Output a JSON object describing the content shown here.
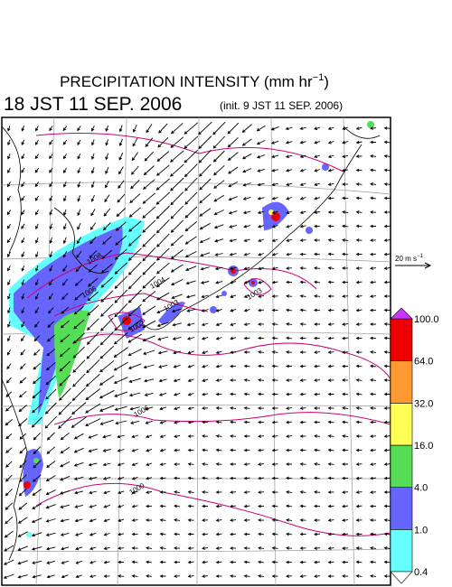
{
  "header": {
    "title": "PRECIPITATION INTENSITY (mm hr",
    "title_exponent": "−1",
    "title_close": ")",
    "valid_time": "18 JST 11 SEP. 2006",
    "init_time": "(init. 9 JST 11 SEP. 2006)"
  },
  "wind_scale": {
    "label": "20 m s",
    "exponent": "−1"
  },
  "colorbar": {
    "labels": [
      "0.4",
      "1.0",
      "4.0",
      "16.0",
      "32.0",
      "64.0",
      "100.0"
    ],
    "colors": [
      "#66ffff",
      "#6666ff",
      "#55dd55",
      "#ffff55",
      "#ff9933",
      "#ee0000"
    ],
    "below_color": "#ffffff",
    "above_color": "#cc33ff"
  },
  "contour_labels": [
    "1008",
    "1006",
    "1004",
    "1002",
    "1003",
    "1003",
    "1006",
    "1000"
  ]
}
